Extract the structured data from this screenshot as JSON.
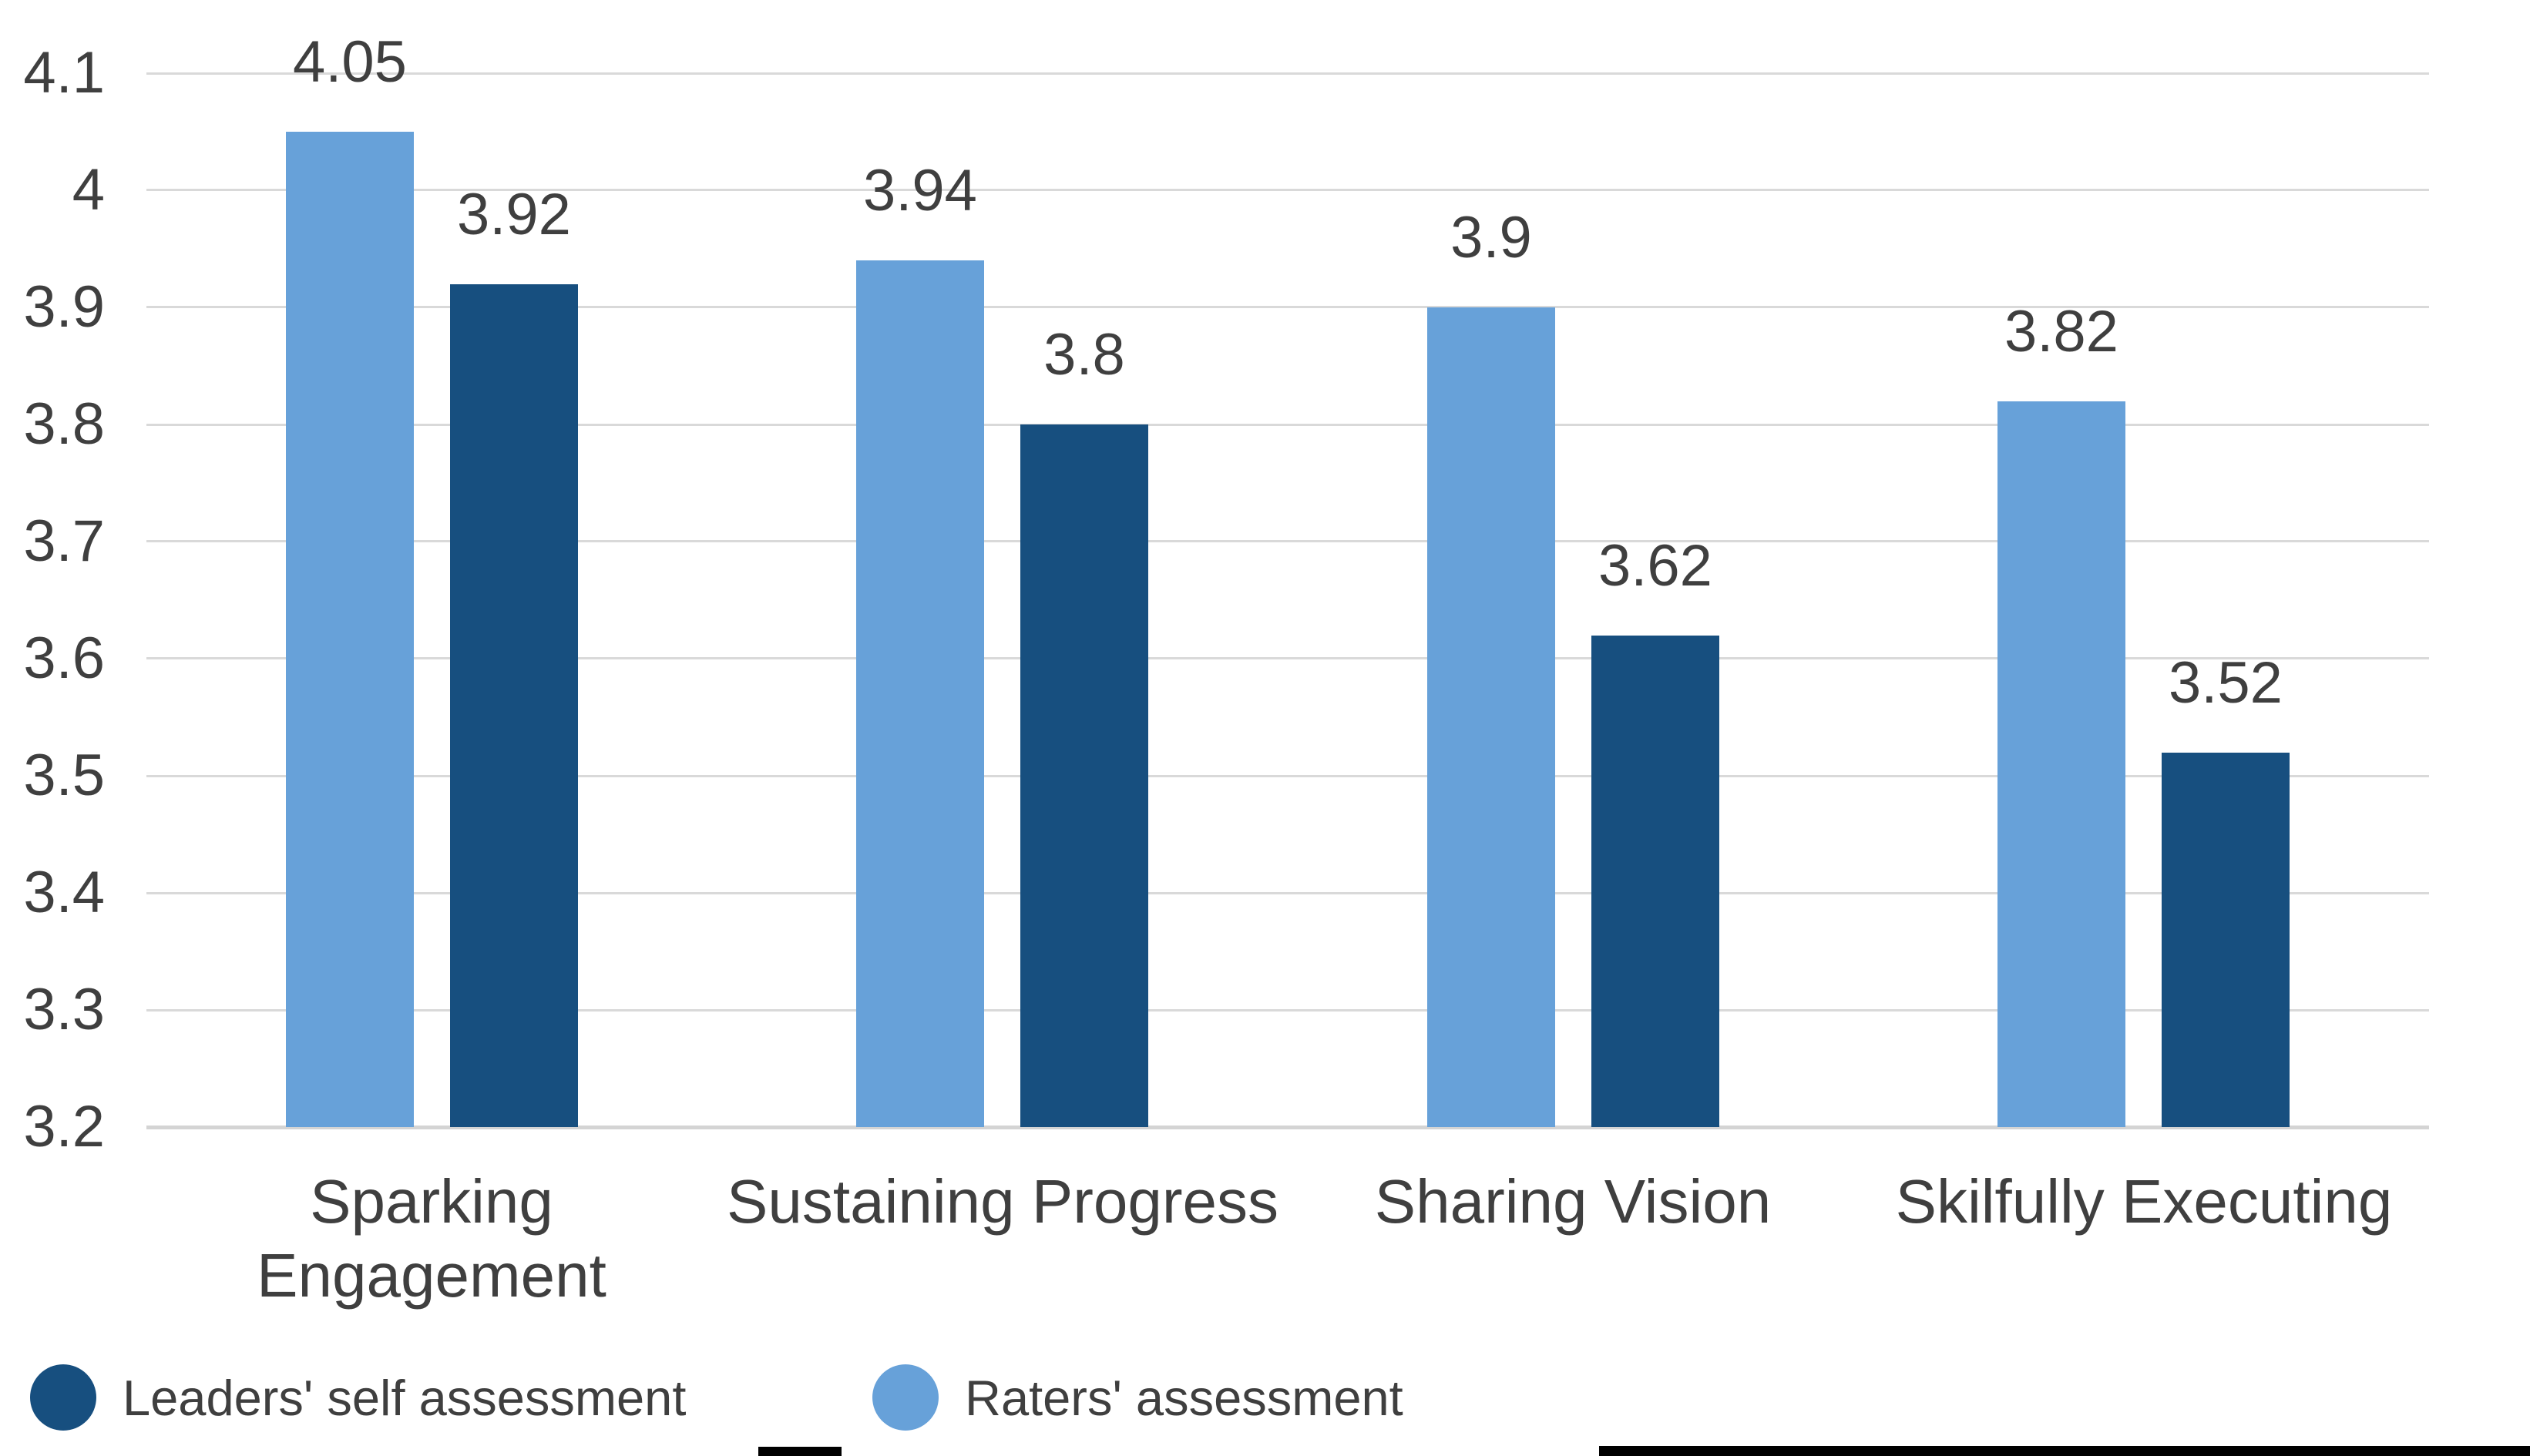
{
  "chart_data": {
    "type": "bar",
    "title": "",
    "xlabel": "",
    "ylabel": "",
    "categories": [
      "Sparking Engagement",
      "Sustaining Progress",
      "Sharing Vision",
      "Skilfully Executing"
    ],
    "categories_display": [
      "Sparking\nEngagement",
      "Sustaining Progress",
      "Sharing Vision",
      "Skilfully Executing"
    ],
    "series": [
      {
        "name": "Raters' assessment",
        "color": "#67A1D9",
        "values": [
          4.05,
          3.94,
          3.9,
          3.82
        ],
        "value_labels": [
          "4.05",
          "3.94",
          "3.9",
          "3.82"
        ]
      },
      {
        "name": "Leaders' self assessment",
        "color": "#174F7F",
        "values": [
          3.92,
          3.8,
          3.62,
          3.52
        ],
        "value_labels": [
          "3.92",
          "3.8",
          "3.62",
          "3.52"
        ]
      }
    ],
    "ylim": [
      3.2,
      4.1
    ],
    "yticks": [
      "4.1",
      "4",
      "3.9",
      "3.8",
      "3.7",
      "3.6",
      "3.5",
      "3.4",
      "3.3",
      "3.2"
    ],
    "grid": true,
    "data_labels_shown": true,
    "legend_position": "bottom-left",
    "legend": [
      {
        "label": "Leaders' self assessment",
        "color": "#174F7F"
      },
      {
        "label": "Raters' assessment",
        "color": "#67A1D9"
      }
    ],
    "colors": {
      "grid": "#D9D9D9",
      "axis_line": "#D4D4D4",
      "text": "#3F3F3F",
      "background": "#FFFFFF",
      "bottom_artifacts": "#000000"
    }
  }
}
